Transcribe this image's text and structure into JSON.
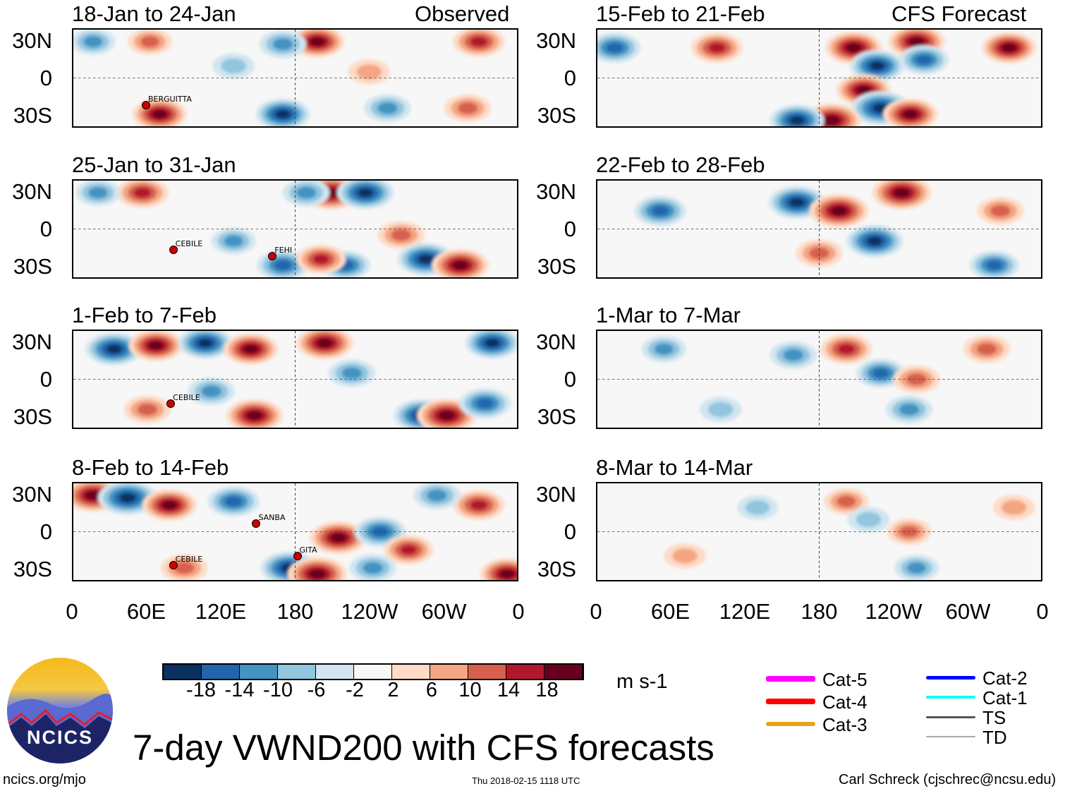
{
  "title": "7-day VWND200 with CFS forecasts",
  "units": "m s-1",
  "site": "ncics.org/mjo",
  "timestamp": "Thu 2018-02-15 1118 UTC",
  "author": "Carl Schreck (cjschrec@ncsu.edu)",
  "logo_text": "NCICS",
  "column_labels": {
    "observed": "Observed",
    "forecast": "CFS Forecast"
  },
  "lat_labels": [
    "30N",
    "0",
    "30S"
  ],
  "lon_labels": [
    "0",
    "60E",
    "120E",
    "180",
    "120W",
    "60W",
    "0"
  ],
  "colorbar": {
    "ticks": [
      "-18",
      "-14",
      "-10",
      "-6",
      "-2",
      "2",
      "6",
      "10",
      "14",
      "18"
    ],
    "colors": [
      "#0a3160",
      "#2166ac",
      "#4393c3",
      "#92c5de",
      "#d1e5f0",
      "#f7f7f7",
      "#fddbc7",
      "#f4a582",
      "#d6604d",
      "#b2182b",
      "#67001f"
    ]
  },
  "legend": [
    {
      "label": "Cat-5",
      "color": "#ff00ff"
    },
    {
      "label": "Cat-4",
      "color": "#ff0000"
    },
    {
      "label": "Cat-3",
      "color": "#e8a317"
    },
    {
      "label": "Cat-2",
      "color": "#0000ff"
    },
    {
      "label": "Cat-1",
      "color": "#00ffff"
    },
    {
      "label": "TS",
      "color": "#555555"
    },
    {
      "label": "TD",
      "color": "#aaaaaa"
    }
  ],
  "chart_data": [
    {
      "type": "heatmap",
      "title": "18-Jan to 24-Jan",
      "kind": "Observed",
      "lon_range": [
        0,
        360
      ],
      "lat_range": [
        -40,
        40
      ],
      "anomalies": [
        [
          198,
          30,
          16
        ],
        [
          329,
          30,
          14
        ],
        [
          170,
          28,
          -10
        ],
        [
          70,
          -30,
          16
        ],
        [
          170,
          -30,
          -16
        ],
        [
          255,
          -25,
          -10
        ],
        [
          320,
          -25,
          10
        ],
        [
          62,
          30,
          8
        ],
        [
          16,
          30,
          -8
        ],
        [
          130,
          10,
          -6
        ],
        [
          240,
          5,
          6
        ]
      ],
      "storms": [
        {
          "name": "BERGUITTA",
          "lon": 58,
          "lat": -20
        }
      ]
    },
    {
      "type": "heatmap",
      "title": "25-Jan to 31-Jan",
      "kind": "Observed",
      "lon_range": [
        0,
        360
      ],
      "lat_range": [
        -40,
        40
      ],
      "anomalies": [
        [
          209,
          30,
          20
        ],
        [
          237,
          30,
          -18
        ],
        [
          56,
          30,
          14
        ],
        [
          189,
          30,
          -10
        ],
        [
          170,
          -30,
          -14
        ],
        [
          221,
          -30,
          -12
        ],
        [
          266,
          -5,
          10
        ],
        [
          286,
          -25,
          -18
        ],
        [
          314,
          -30,
          18
        ],
        [
          201,
          -25,
          12
        ],
        [
          20,
          30,
          -8
        ],
        [
          130,
          -10,
          -8
        ]
      ],
      "storms": [
        {
          "name": "CEBILE",
          "lon": 80,
          "lat": -15
        },
        {
          "name": "FEHI",
          "lon": 160,
          "lat": -20
        }
      ]
    },
    {
      "type": "heatmap",
      "title": "1-Feb to 7-Feb",
      "kind": "Observed",
      "lon_range": [
        0,
        360
      ],
      "lat_range": [
        -40,
        40
      ],
      "anomalies": [
        [
          33,
          25,
          -18
        ],
        [
          67,
          28,
          16
        ],
        [
          107,
          30,
          -16
        ],
        [
          144,
          25,
          16
        ],
        [
          204,
          30,
          18
        ],
        [
          226,
          5,
          -10
        ],
        [
          283,
          -30,
          -18
        ],
        [
          303,
          -30,
          20
        ],
        [
          334,
          -20,
          -14
        ],
        [
          147,
          -30,
          18
        ],
        [
          340,
          30,
          -16
        ],
        [
          112,
          -10,
          -10
        ],
        [
          60,
          -25,
          10
        ]
      ],
      "storms": [
        {
          "name": "CEBILE",
          "lon": 78,
          "lat": -18
        }
      ]
    },
    {
      "type": "heatmap",
      "title": "8-Feb to 14-Feb",
      "kind": "Observed",
      "lon_range": [
        0,
        360
      ],
      "lat_range": [
        -40,
        40
      ],
      "anomalies": [
        [
          16,
          30,
          18
        ],
        [
          44,
          28,
          -20
        ],
        [
          78,
          22,
          16
        ],
        [
          130,
          25,
          -14
        ],
        [
          215,
          -5,
          18
        ],
        [
          249,
          0,
          -14
        ],
        [
          329,
          22,
          14
        ],
        [
          295,
          30,
          -10
        ],
        [
          175,
          -30,
          -18
        ],
        [
          198,
          -35,
          20
        ],
        [
          243,
          -30,
          -10
        ],
        [
          352,
          -35,
          16
        ],
        [
          272,
          -15,
          12
        ],
        [
          90,
          -30,
          10
        ]
      ],
      "storms": [
        {
          "name": "SANBA",
          "lon": 147,
          "lat": 8
        },
        {
          "name": "CEBILE",
          "lon": 80,
          "lat": -25
        },
        {
          "name": "GITA",
          "lon": 180,
          "lat": -18
        }
      ]
    },
    {
      "type": "heatmap",
      "title": "15-Feb to 21-Feb",
      "kind": "CFS Forecast",
      "lon_range": [
        0,
        360
      ],
      "lat_range": [
        -40,
        40
      ],
      "anomalies": [
        [
          97,
          25,
          14
        ],
        [
          208,
          25,
          18
        ],
        [
          227,
          10,
          -16
        ],
        [
          216,
          -10,
          16
        ],
        [
          230,
          -25,
          -20
        ],
        [
          190,
          -35,
          20
        ],
        [
          162,
          -35,
          -16
        ],
        [
          254,
          -30,
          16
        ],
        [
          334,
          25,
          16
        ],
        [
          259,
          30,
          18
        ],
        [
          14,
          25,
          -14
        ],
        [
          265,
          15,
          -12
        ]
      ],
      "storms": []
    },
    {
      "type": "heatmap",
      "title": "22-Feb to 28-Feb",
      "kind": "CFS Forecast",
      "lon_range": [
        0,
        360
      ],
      "lat_range": [
        -40,
        40
      ],
      "anomalies": [
        [
          162,
          22,
          -18
        ],
        [
          196,
          15,
          20
        ],
        [
          225,
          -10,
          -18
        ],
        [
          247,
          30,
          20
        ],
        [
          51,
          15,
          -14
        ],
        [
          327,
          15,
          10
        ],
        [
          322,
          -30,
          -12
        ],
        [
          180,
          -20,
          10
        ]
      ],
      "storms": []
    },
    {
      "type": "heatmap",
      "title": "1-Mar to 7-Mar",
      "kind": "CFS Forecast",
      "lon_range": [
        0,
        360
      ],
      "lat_range": [
        -40,
        40
      ],
      "anomalies": [
        [
          202,
          25,
          14
        ],
        [
          159,
          20,
          -10
        ],
        [
          230,
          5,
          -12
        ],
        [
          259,
          0,
          10
        ],
        [
          316,
          25,
          10
        ],
        [
          54,
          25,
          -8
        ],
        [
          253,
          -25,
          -10
        ],
        [
          100,
          -25,
          -6
        ]
      ],
      "storms": []
    },
    {
      "type": "heatmap",
      "title": "8-Mar to 14-Mar",
      "kind": "CFS Forecast",
      "lon_range": [
        0,
        360
      ],
      "lat_range": [
        -40,
        40
      ],
      "anomalies": [
        [
          202,
          25,
          8
        ],
        [
          220,
          10,
          -6
        ],
        [
          253,
          0,
          8
        ],
        [
          71,
          -20,
          6
        ],
        [
          259,
          -30,
          -8
        ],
        [
          338,
          20,
          6
        ],
        [
          130,
          20,
          -5
        ]
      ],
      "storms": []
    }
  ]
}
